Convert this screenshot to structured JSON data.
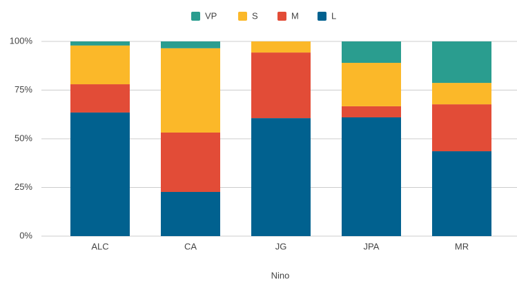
{
  "chart_data": {
    "type": "stacked_bar",
    "x_label": "Nino",
    "categories": [
      "ALC",
      "CA",
      "JG",
      "JPA",
      "MR"
    ],
    "series": [
      {
        "name": "L",
        "color": "#01618f",
        "values": [
          63.5,
          22.7,
          60.6,
          61.0,
          43.6
        ]
      },
      {
        "name": "M",
        "color": "#e24c37",
        "values": [
          14.5,
          30.5,
          33.7,
          5.7,
          24.1
        ]
      },
      {
        "name": "S",
        "color": "#fbb829",
        "values": [
          19.9,
          43.3,
          5.7,
          22.3,
          11.0
        ]
      },
      {
        "name": "VP",
        "color": "#2a9d8f",
        "values": [
          2.1,
          3.5,
          0,
          11.0,
          21.3
        ]
      }
    ],
    "ylim": [
      0,
      100
    ],
    "yticks": [
      {
        "value": 0,
        "label": "0%"
      },
      {
        "value": 25,
        "label": "25%"
      },
      {
        "value": 50,
        "label": "50%"
      },
      {
        "value": 75,
        "label": "75%"
      },
      {
        "value": 100,
        "label": "100%"
      }
    ],
    "grid": true,
    "legend": "top"
  }
}
